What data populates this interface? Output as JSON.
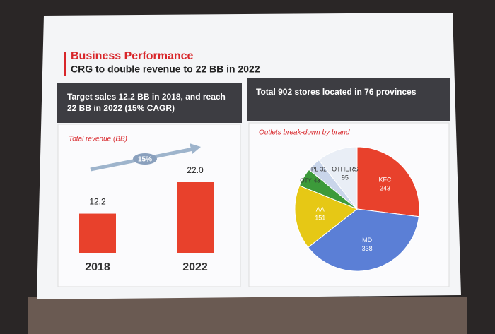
{
  "header": {
    "title": "Business Performance",
    "subtitle": "CRG to double revenue to 22 BB in 2022"
  },
  "chart_data": [
    {
      "type": "bar",
      "heading": "Target sales 12.2 BB in 2018, and reach 22 BB in 2022 (15% CAGR)",
      "title": "Total revenue (BB)",
      "annotation": "15%",
      "categories": [
        "2018",
        "2022"
      ],
      "values": [
        12.2,
        22.0
      ],
      "value_labels": [
        "12.2",
        "22.0"
      ],
      "color": "#e8412c"
    },
    {
      "type": "pie",
      "heading": "Total 902 stores located in 76 provinces",
      "title": "Outlets  break-down by brand",
      "categories": [
        "KFC",
        "MD",
        "AA",
        "OTY",
        "PL",
        "OTHERS"
      ],
      "values": [
        243,
        338,
        151,
        43,
        32,
        95
      ],
      "colors": [
        "#e8412c",
        "#5b7fd6",
        "#e6c815",
        "#3c9a3a",
        "#c9d5ea",
        "#e9eef6"
      ]
    }
  ]
}
